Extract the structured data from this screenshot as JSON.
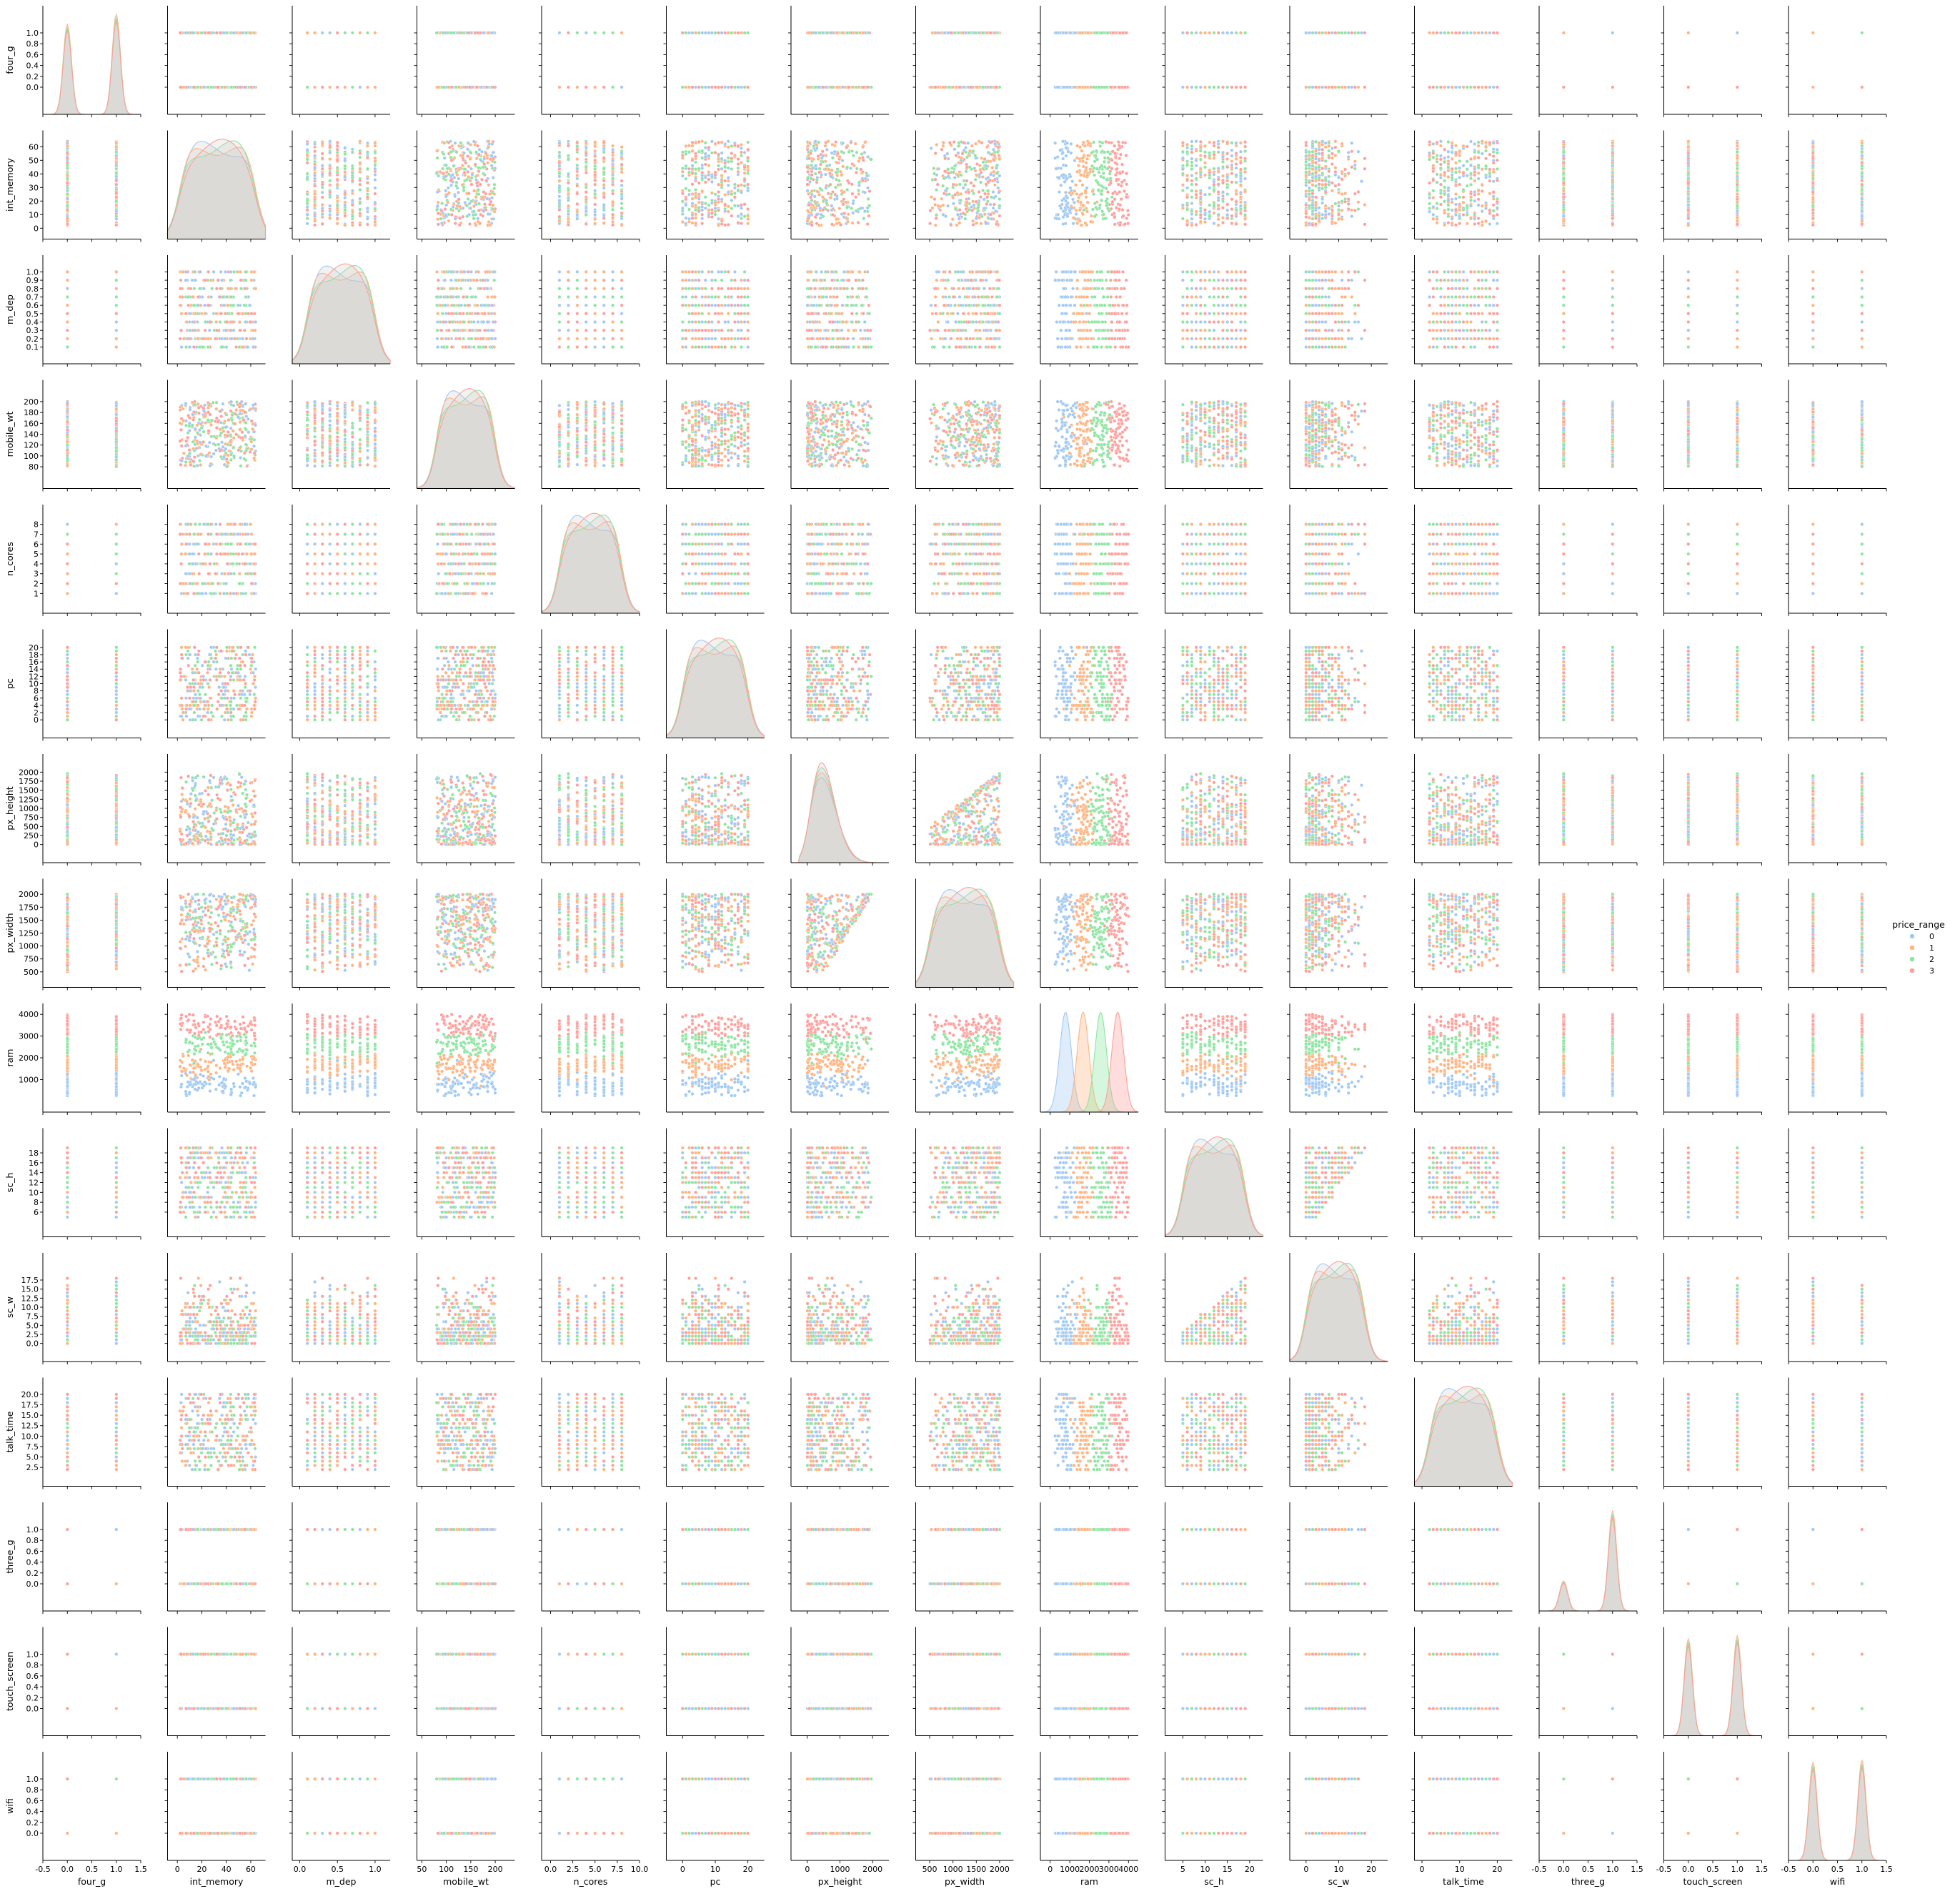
{
  "chart_data": {
    "type": "scatter",
    "variables": [
      "four_g",
      "int_memory",
      "m_dep",
      "mobile_wt",
      "n_cores",
      "pc",
      "px_height",
      "px_width",
      "ram",
      "sc_h",
      "sc_w",
      "talk_time",
      "three_g",
      "touch_screen",
      "wifi"
    ],
    "axes": [
      {
        "name": "four_g",
        "lim": [
          -0.5,
          1.5
        ],
        "xticks": [
          "-0.5",
          "0.0",
          "0.5",
          "1.0",
          "1.5"
        ],
        "yticks": [
          "0.0",
          "0.2",
          "0.4",
          "0.6",
          "0.8",
          "1.0"
        ],
        "kind": "binary",
        "kde_peaks": [
          0.9,
          1.0
        ]
      },
      {
        "name": "int_memory",
        "lim": [
          -8,
          72
        ],
        "xticks": [
          "0",
          "20",
          "40",
          "60"
        ],
        "yticks": [
          "0",
          "10",
          "20",
          "30",
          "40",
          "50",
          "60"
        ],
        "kind": "uniform",
        "range": [
          2,
          64
        ]
      },
      {
        "name": "m_dep",
        "lim": [
          -0.1,
          1.2
        ],
        "xticks": [
          "0.0",
          "0.5",
          "1.0"
        ],
        "yticks": [
          "0.1",
          "0.2",
          "0.3",
          "0.4",
          "0.5",
          "0.6",
          "0.7",
          "0.8",
          "0.9",
          "1.0"
        ],
        "kind": "grid",
        "levels": [
          0.1,
          0.2,
          0.3,
          0.4,
          0.5,
          0.6,
          0.7,
          0.8,
          0.9,
          1.0
        ]
      },
      {
        "name": "mobile_wt",
        "lim": [
          40,
          240
        ],
        "xticks": [
          "50",
          "100",
          "150",
          "200"
        ],
        "yticks": [
          "80",
          "100",
          "120",
          "140",
          "160",
          "180",
          "200"
        ],
        "kind": "uniform",
        "range": [
          80,
          200
        ]
      },
      {
        "name": "n_cores",
        "lim": [
          -1,
          10
        ],
        "xticks": [
          "0.0",
          "2.5",
          "5.0",
          "7.5",
          "10.0"
        ],
        "yticks": [
          "1",
          "2",
          "3",
          "4",
          "5",
          "6",
          "7",
          "8"
        ],
        "kind": "grid",
        "levels": [
          1,
          2,
          3,
          4,
          5,
          6,
          7,
          8
        ]
      },
      {
        "name": "pc",
        "lim": [
          -5,
          25
        ],
        "xticks": [
          "0",
          "10",
          "20"
        ],
        "yticks": [
          "0",
          "2",
          "4",
          "6",
          "8",
          "10",
          "12",
          "14",
          "16",
          "18",
          "20"
        ],
        "kind": "grid",
        "levels": [
          0,
          1,
          2,
          3,
          4,
          5,
          6,
          7,
          8,
          9,
          10,
          11,
          12,
          13,
          14,
          15,
          16,
          17,
          18,
          19,
          20
        ]
      },
      {
        "name": "px_height",
        "lim": [
          -500,
          2500
        ],
        "xticks": [
          "0",
          "1000",
          "2000"
        ],
        "yticks": [
          "0",
          "250",
          "500",
          "750",
          "1000",
          "1250",
          "1500",
          "1750",
          "2000"
        ],
        "kind": "skew",
        "range": [
          0,
          1960
        ]
      },
      {
        "name": "px_width",
        "lim": [
          200,
          2300
        ],
        "xticks": [
          "500",
          "1000",
          "1500",
          "2000"
        ],
        "yticks": [
          "500",
          "750",
          "1000",
          "1250",
          "1500",
          "1750",
          "2000"
        ],
        "kind": "uniform",
        "range": [
          500,
          2000
        ]
      },
      {
        "name": "ram",
        "lim": [
          -500,
          4500
        ],
        "xticks": [
          "0",
          "1000",
          "2000",
          "3000",
          "4000"
        ],
        "yticks": [
          "1000",
          "2000",
          "3000",
          "4000"
        ],
        "kind": "ram",
        "range": [
          256,
          3998
        ]
      },
      {
        "name": "sc_h",
        "lim": [
          1,
          23
        ],
        "xticks": [
          "5",
          "10",
          "15",
          "20"
        ],
        "yticks": [
          "6",
          "8",
          "10",
          "12",
          "14",
          "16",
          "18"
        ],
        "kind": "grid",
        "levels": [
          5,
          6,
          7,
          8,
          9,
          10,
          11,
          12,
          13,
          14,
          15,
          16,
          17,
          18,
          19
        ]
      },
      {
        "name": "sc_w",
        "lim": [
          -5,
          25
        ],
        "xticks": [
          "0",
          "10",
          "20"
        ],
        "yticks": [
          "0.0",
          "2.5",
          "5.0",
          "7.5",
          "10.0",
          "12.5",
          "15.0",
          "17.5"
        ],
        "kind": "grid",
        "levels": [
          0,
          1,
          2,
          3,
          4,
          5,
          6,
          7,
          8,
          9,
          10,
          11,
          12,
          13,
          14,
          15,
          16,
          17,
          18
        ]
      },
      {
        "name": "talk_time",
        "lim": [
          -2,
          24
        ],
        "xticks": [
          "0",
          "10",
          "20"
        ],
        "yticks": [
          "2.5",
          "5.0",
          "7.5",
          "10.0",
          "12.5",
          "15.0",
          "17.5",
          "20.0"
        ],
        "kind": "grid",
        "levels": [
          2,
          3,
          4,
          5,
          6,
          7,
          8,
          9,
          10,
          11,
          12,
          13,
          14,
          15,
          16,
          17,
          18,
          19,
          20
        ]
      },
      {
        "name": "three_g",
        "lim": [
          -0.5,
          1.5
        ],
        "xticks": [
          "-0.5",
          "0.0",
          "0.5",
          "1.0",
          "1.5"
        ],
        "yticks": [
          "0.0",
          "0.2",
          "0.4",
          "0.6",
          "0.8",
          "1.0"
        ],
        "kind": "binary",
        "kde_peaks": [
          0.3,
          1.0
        ]
      },
      {
        "name": "touch_screen",
        "lim": [
          -0.5,
          1.5
        ],
        "xticks": [
          "-0.5",
          "0.0",
          "0.5",
          "1.0",
          "1.5"
        ],
        "yticks": [
          "0.0",
          "0.2",
          "0.4",
          "0.6",
          "0.8",
          "1.0"
        ],
        "kind": "binary",
        "kde_peaks": [
          0.97,
          1.0
        ]
      },
      {
        "name": "wifi",
        "lim": [
          -0.5,
          1.5
        ],
        "xticks": [
          "-0.5",
          "0.0",
          "0.5",
          "1.0",
          "1.5"
        ],
        "yticks": [
          "0.0",
          "0.2",
          "0.4",
          "0.6",
          "0.8",
          "1.0"
        ],
        "kind": "binary",
        "kde_peaks": [
          0.98,
          1.0
        ]
      }
    ],
    "hue": {
      "title": "price_range",
      "classes": [
        "0",
        "1",
        "2",
        "3"
      ],
      "colors": [
        "#a1c9f4",
        "#ffb482",
        "#8de5a1",
        "#ff9f9b"
      ],
      "ram_means": [
        785,
        1680,
        2580,
        3450
      ]
    },
    "diag_fill": "#c8c6c0",
    "diagonal": "kde",
    "off_diagonal": "scatter",
    "legend_position": "right"
  }
}
